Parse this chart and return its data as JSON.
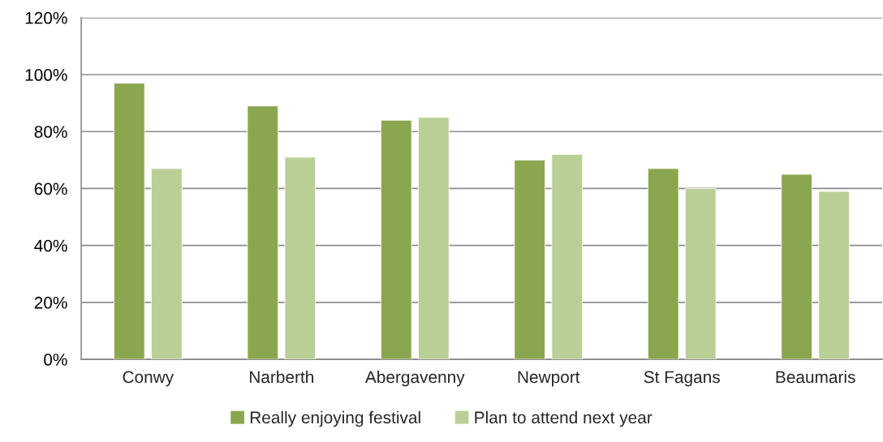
{
  "chart_data": {
    "type": "bar",
    "categories": [
      "Conwy",
      "Narberth",
      "Abergavenny",
      "Newport",
      "St Fagans",
      "Beaumaris"
    ],
    "series": [
      {
        "name": "Really enjoying festival",
        "color": "#8aa64f",
        "values": [
          97,
          89,
          84,
          70,
          67,
          65
        ]
      },
      {
        "name": "Plan to attend next year",
        "color": "#bacf96",
        "values": [
          67,
          71,
          85,
          72,
          60,
          59
        ]
      }
    ],
    "ylim": [
      0,
      120
    ],
    "yticks": [
      {
        "value": 0,
        "label": "0%"
      },
      {
        "value": 20,
        "label": "20%"
      },
      {
        "value": 40,
        "label": "40%"
      },
      {
        "value": 60,
        "label": "60%"
      },
      {
        "value": 80,
        "label": "80%"
      },
      {
        "value": 100,
        "label": "100%"
      },
      {
        "value": 120,
        "label": "120%"
      }
    ],
    "grid": "y",
    "legend": "bottom"
  }
}
